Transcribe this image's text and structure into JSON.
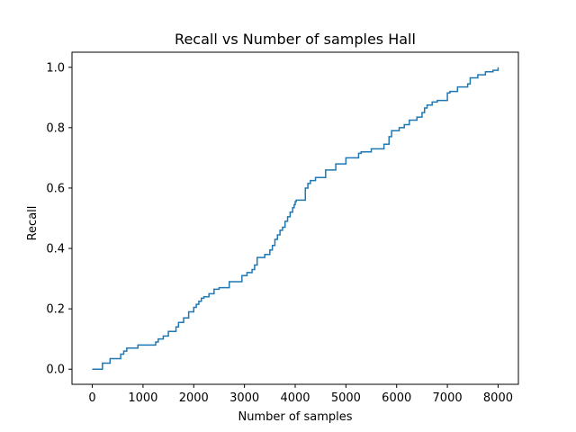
{
  "chart_data": {
    "type": "line",
    "title": "Recall vs Number of samples Hall",
    "xlabel": "Number of samples",
    "ylabel": "Recall",
    "xlim": [
      -400,
      8400
    ],
    "ylim": [
      -0.05,
      1.05
    ],
    "xticks": [
      0,
      1000,
      2000,
      3000,
      4000,
      5000,
      6000,
      7000,
      8000
    ],
    "yticks": [
      0.0,
      0.2,
      0.4,
      0.6,
      0.8,
      1.0
    ],
    "xtick_labels": [
      "0",
      "1000",
      "2000",
      "3000",
      "4000",
      "5000",
      "6000",
      "7000",
      "8000"
    ],
    "ytick_labels": [
      "0.0",
      "0.2",
      "0.4",
      "0.6",
      "0.8",
      "1.0"
    ],
    "grid": false,
    "color": "#1f77b4",
    "series": [
      {
        "name": "Recall",
        "step": true,
        "x": [
          0,
          200,
          230,
          350,
          560,
          620,
          680,
          900,
          1250,
          1300,
          1400,
          1500,
          1650,
          1700,
          1800,
          1900,
          2000,
          2050,
          2100,
          2150,
          2200,
          2300,
          2400,
          2500,
          2700,
          2950,
          3050,
          3150,
          3200,
          3250,
          3400,
          3500,
          3550,
          3600,
          3650,
          3700,
          3750,
          3800,
          3850,
          3900,
          3950,
          3980,
          4000,
          4020,
          4200,
          4250,
          4300,
          4400,
          4600,
          4800,
          5000,
          5250,
          5300,
          5500,
          5750,
          5850,
          5900,
          6050,
          6150,
          6250,
          6400,
          6500,
          6550,
          6600,
          6700,
          6800,
          7000,
          7050,
          7200,
          7400,
          7450,
          7600,
          7750,
          7900,
          8000
        ],
        "y": [
          0.0,
          0.02,
          0.02,
          0.035,
          0.05,
          0.06,
          0.07,
          0.08,
          0.09,
          0.1,
          0.11,
          0.125,
          0.14,
          0.155,
          0.17,
          0.19,
          0.205,
          0.215,
          0.225,
          0.235,
          0.24,
          0.25,
          0.265,
          0.27,
          0.29,
          0.31,
          0.32,
          0.33,
          0.345,
          0.37,
          0.38,
          0.395,
          0.41,
          0.43,
          0.445,
          0.46,
          0.47,
          0.49,
          0.505,
          0.52,
          0.535,
          0.545,
          0.555,
          0.56,
          0.6,
          0.615,
          0.625,
          0.635,
          0.66,
          0.68,
          0.7,
          0.715,
          0.72,
          0.73,
          0.745,
          0.77,
          0.79,
          0.8,
          0.81,
          0.825,
          0.835,
          0.85,
          0.865,
          0.875,
          0.885,
          0.89,
          0.915,
          0.92,
          0.935,
          0.945,
          0.965,
          0.975,
          0.985,
          0.99,
          1.0
        ]
      }
    ]
  }
}
